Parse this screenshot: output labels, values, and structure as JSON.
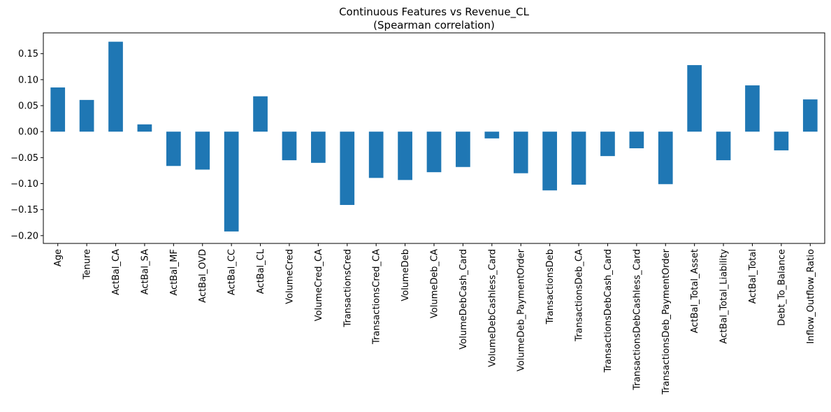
{
  "chart_data": {
    "type": "bar",
    "title": "Continuous Features vs Revenue_CL",
    "subtitle": "(Spearman correlation)",
    "xlabel": "",
    "ylabel": "",
    "ylim": [
      -0.215,
      0.19
    ],
    "yticks": [
      -0.2,
      -0.15,
      -0.1,
      -0.05,
      0.0,
      0.05,
      0.1,
      0.15
    ],
    "ytick_labels": [
      "−0.20",
      "−0.15",
      "−0.10",
      "−0.05",
      "0.00",
      "0.05",
      "0.10",
      "0.15"
    ],
    "grid": false,
    "bar_color": "#1f77b4",
    "categories": [
      "Age",
      "Tenure",
      "ActBal_CA",
      "ActBal_SA",
      "ActBal_MF",
      "ActBal_OVD",
      "ActBal_CC",
      "ActBal_CL",
      "VolumeCred",
      "VolumeCred_CA",
      "TransactionsCred",
      "TransactionsCred_CA",
      "VolumeDeb",
      "VolumeDeb_CA",
      "VolumeDebCash_Card",
      "VolumeDebCashless_Card",
      "VolumeDeb_PaymentOrder",
      "TransactionsDeb",
      "TransactionsDeb_CA",
      "TransactionsDebCash_Card",
      "TransactionsDebCashless_Card",
      "TransactionsDeb_PaymentOrder",
      "ActBal_Total_Asset",
      "ActBal_Total_Liability",
      "ActBal_Total",
      "Debt_To_Balance",
      "Inflow_Outflow_Ratio"
    ],
    "values": [
      0.085,
      0.061,
      0.173,
      0.014,
      -0.066,
      -0.073,
      -0.192,
      0.068,
      -0.055,
      -0.06,
      -0.141,
      -0.089,
      -0.093,
      -0.078,
      -0.068,
      -0.013,
      -0.08,
      -0.113,
      -0.102,
      -0.047,
      -0.032,
      -0.101,
      0.128,
      -0.055,
      0.089,
      -0.036,
      0.062
    ]
  }
}
